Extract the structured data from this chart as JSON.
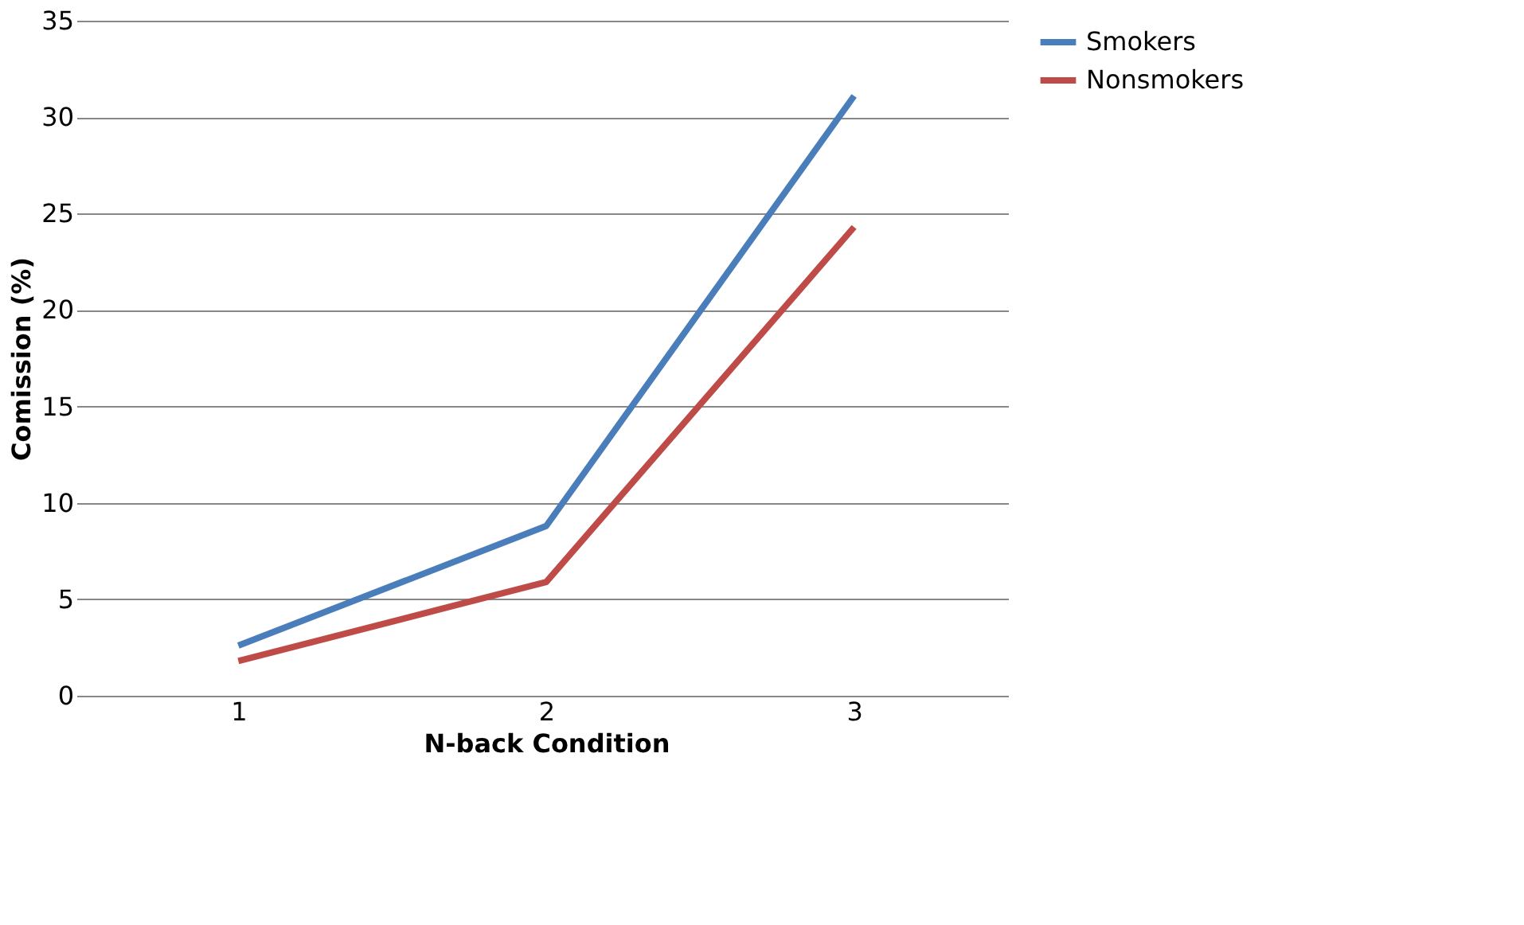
{
  "chart_data": {
    "type": "line",
    "xlabel": "N-back Condition",
    "ylabel": "Comission (%)",
    "categories": [
      "1",
      "2",
      "3"
    ],
    "series": [
      {
        "name": "Smokers",
        "color": "#4a7ebb",
        "values": [
          2.6,
          8.8,
          31.1
        ]
      },
      {
        "name": "Nonsmokers",
        "color": "#be4b48",
        "values": [
          1.8,
          5.9,
          24.3
        ]
      }
    ],
    "ylim": [
      0,
      35
    ],
    "yticks": [
      0,
      5,
      10,
      15,
      20,
      25,
      30,
      35
    ],
    "grid": "y",
    "legend": "right",
    "marker": "none",
    "line_style": "solid"
  }
}
